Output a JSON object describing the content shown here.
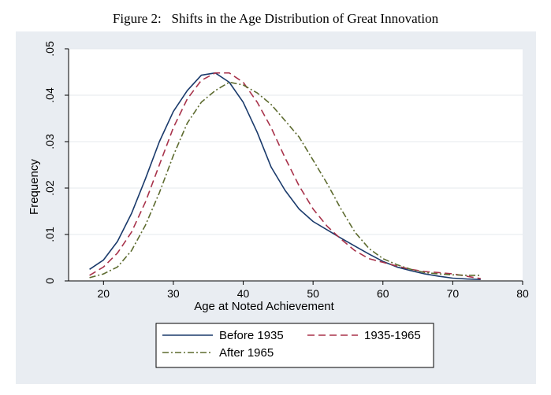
{
  "title": "Figure 2:   Shifts in the Age Distribution of Great Innovation",
  "chart_data": {
    "type": "line",
    "xlabel": "Age at Noted Achievement",
    "ylabel": "Frequency",
    "xlim": [
      15,
      80
    ],
    "ylim": [
      0,
      0.05
    ],
    "xticks": [
      20,
      30,
      40,
      50,
      60,
      70,
      80
    ],
    "yticks": [
      0,
      0.01,
      0.02,
      0.03,
      0.04,
      0.05
    ],
    "xtick_labels": [
      "20",
      "30",
      "40",
      "50",
      "60",
      "70",
      "80"
    ],
    "ytick_labels": [
      "0",
      ".01",
      ".02",
      ".03",
      ".04",
      ".05"
    ],
    "grid": true,
    "legend_position": "bottom",
    "series": [
      {
        "name": "Before 1935",
        "color": "#1a3a6b",
        "style": "solid",
        "x": [
          18,
          20,
          22,
          24,
          26,
          28,
          30,
          32,
          34,
          36,
          38,
          40,
          42,
          44,
          46,
          48,
          50,
          52,
          54,
          56,
          58,
          60,
          62,
          64,
          66,
          68,
          70,
          72,
          74
        ],
        "y": [
          0.0025,
          0.0045,
          0.0085,
          0.0145,
          0.022,
          0.03,
          0.0365,
          0.041,
          0.0443,
          0.0448,
          0.0428,
          0.0385,
          0.032,
          0.0245,
          0.0195,
          0.0155,
          0.0128,
          0.011,
          0.0092,
          0.0075,
          0.0058,
          0.0042,
          0.003,
          0.0022,
          0.0015,
          0.001,
          0.0006,
          0.0004,
          0.0003
        ]
      },
      {
        "name": "1935-1965",
        "color": "#a8324a",
        "style": "dashed",
        "x": [
          18,
          20,
          22,
          24,
          26,
          28,
          30,
          32,
          34,
          36,
          38,
          40,
          42,
          44,
          46,
          48,
          50,
          52,
          54,
          56,
          58,
          60,
          62,
          64,
          66,
          68,
          70,
          72,
          74
        ],
        "y": [
          0.0012,
          0.003,
          0.006,
          0.0105,
          0.017,
          0.025,
          0.033,
          0.0392,
          0.0432,
          0.0448,
          0.0448,
          0.0428,
          0.0385,
          0.033,
          0.0265,
          0.0205,
          0.0155,
          0.0118,
          0.009,
          0.0065,
          0.0048,
          0.004,
          0.0032,
          0.0025,
          0.002,
          0.0018,
          0.0015,
          0.001,
          0.0005
        ]
      },
      {
        "name": "After 1965",
        "color": "#5d6b2f",
        "style": "dashdot",
        "x": [
          18,
          20,
          22,
          24,
          26,
          28,
          30,
          32,
          34,
          36,
          38,
          40,
          42,
          44,
          46,
          48,
          50,
          52,
          54,
          56,
          58,
          60,
          62,
          64,
          66,
          68,
          70,
          72,
          74
        ],
        "y": [
          0.0007,
          0.0015,
          0.003,
          0.0065,
          0.012,
          0.019,
          0.027,
          0.034,
          0.0385,
          0.041,
          0.0428,
          0.0422,
          0.0405,
          0.038,
          0.0345,
          0.031,
          0.026,
          0.021,
          0.0155,
          0.0105,
          0.007,
          0.0048,
          0.0035,
          0.0025,
          0.0018,
          0.0015,
          0.0013,
          0.0012,
          0.0012
        ]
      }
    ]
  }
}
